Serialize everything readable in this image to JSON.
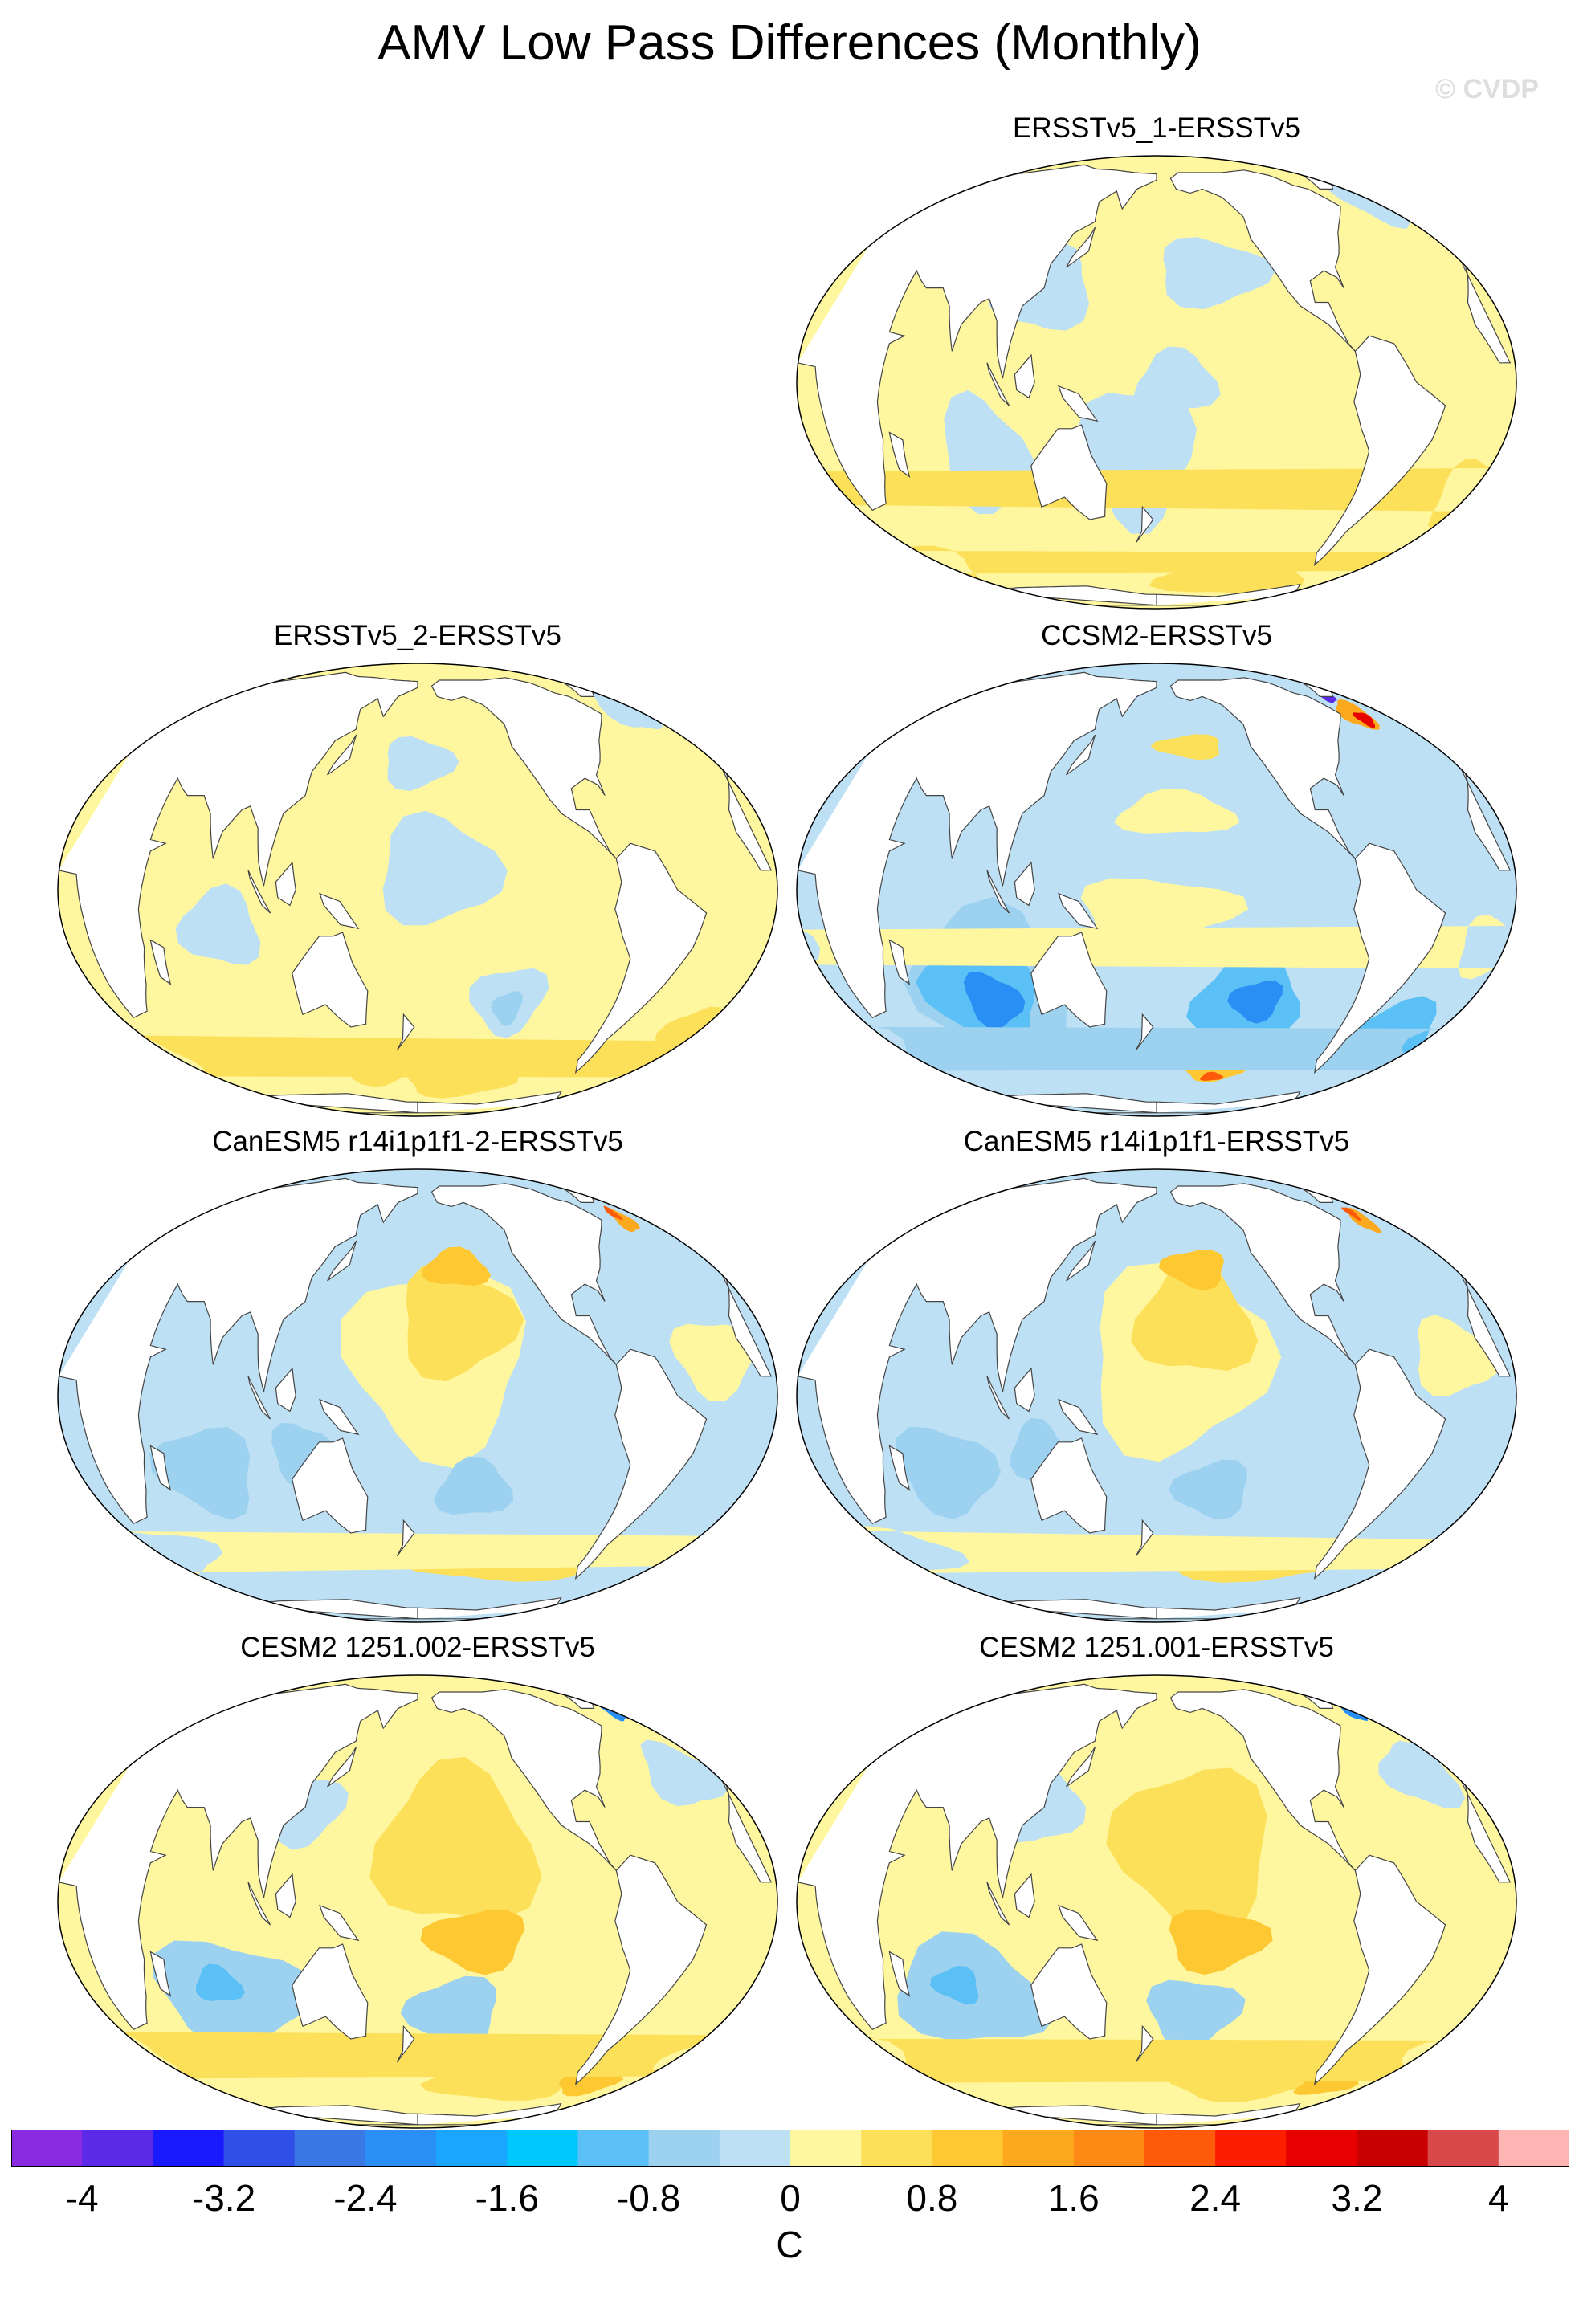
{
  "figure": {
    "title": "AMV Low Pass Differences (Monthly)",
    "copyright": "© CVDP"
  },
  "panels": [
    {
      "title": "ERSSTv5_1-ERSSTv5",
      "variant": "obs1"
    },
    {
      "title": "ERSSTv5_2-ERSSTv5",
      "variant": "obs2"
    },
    {
      "title": "CCSM2-ERSSTv5",
      "variant": "ccsm2"
    },
    {
      "title": "CanESM5 r14i1p1f1-2-ERSSTv5",
      "variant": "canesm"
    },
    {
      "title": "CanESM5 r14i1p1f1-ERSSTv5",
      "variant": "canesm"
    },
    {
      "title": "CESM2 1251.002-ERSSTv5",
      "variant": "cesm"
    },
    {
      "title": "CESM2 1251.001-ERSSTv5",
      "variant": "cesm"
    }
  ],
  "colorbar": {
    "units": "C",
    "levels": [
      -4,
      -3.6,
      -3.2,
      -2.8,
      -2.4,
      -2.0,
      -1.6,
      -1.2,
      -0.8,
      -0.4,
      0,
      0.4,
      0.8,
      1.2,
      1.6,
      2.0,
      2.4,
      2.8,
      3.2,
      3.6,
      4
    ],
    "labels": [
      "-4",
      "-3.2",
      "-2.4",
      "-1.6",
      "-0.8",
      "0",
      "0.8",
      "1.6",
      "2.4",
      "3.2",
      "4"
    ],
    "colors": [
      "#8a2be2",
      "#5a2ae6",
      "#1a1aff",
      "#2f4fe6",
      "#3a78e6",
      "#2a8ff5",
      "#1aa6ff",
      "#00c8ff",
      "#5ac0f5",
      "#9cd2f0",
      "#bde0f5",
      "#fff7a0",
      "#fde05a",
      "#fdc832",
      "#fda91e",
      "#fd8a14",
      "#fd5a0a",
      "#fd1e00",
      "#e60000",
      "#c80000",
      "#d94848",
      "#ffb4b4"
    ]
  }
}
